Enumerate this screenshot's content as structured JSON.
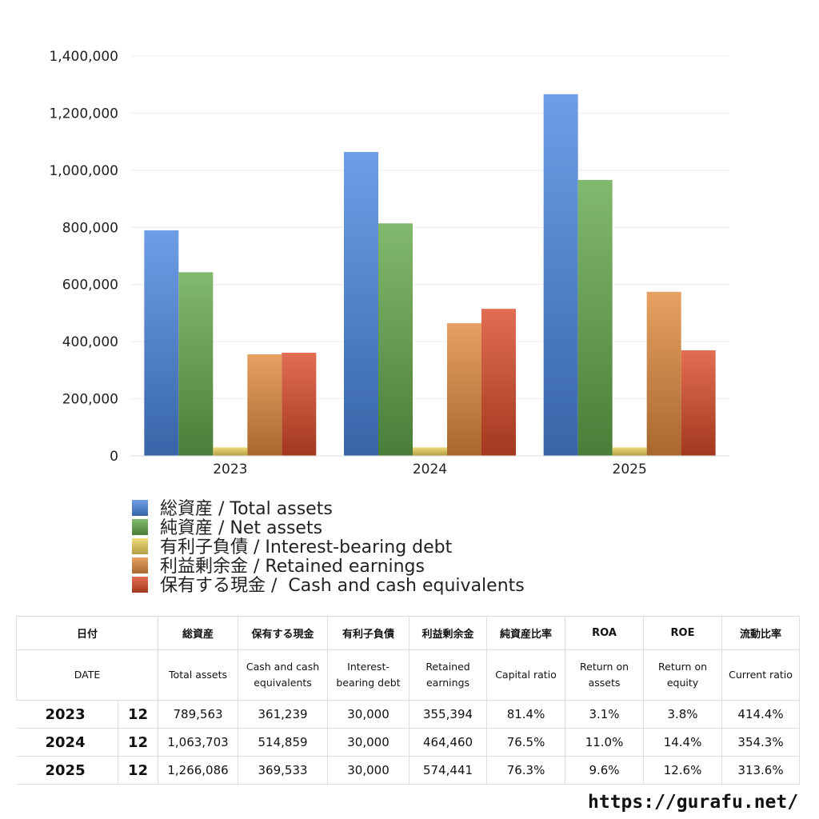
{
  "chart_data": {
    "type": "bar",
    "categories": [
      "2023",
      "2024",
      "2025"
    ],
    "series": [
      {
        "name": "総資産 / Total assets",
        "color": "#4a86e0",
        "values": [
          789563,
          1063703,
          1266086
        ]
      },
      {
        "name": "純資産 / Net assets",
        "color": "#62a84a",
        "values": [
          643000,
          814000,
          966000
        ]
      },
      {
        "name": "有利子負債 / Interest-bearing debt",
        "color": "#ecd25a",
        "values": [
          30000,
          30000,
          30000
        ]
      },
      {
        "name": "利益剰余金 / Retained earnings",
        "color": "#e08a3c",
        "values": [
          355394,
          464460,
          574441
        ]
      },
      {
        "name": "保有する現金 /  Cash and cash equivalents",
        "color": "#d94a28",
        "values": [
          361239,
          514859,
          369533
        ]
      }
    ],
    "ylim": [
      0,
      1400000
    ],
    "yticks": [
      0,
      {
        "value": 200000,
        "label": "200,000"
      },
      {
        "value": 400000,
        "label": "400,000"
      },
      {
        "value": 600000,
        "label": "600,000"
      },
      {
        "value": 800000,
        "label": "800,000"
      },
      {
        "value": 1000000,
        "label": "1,000,000"
      },
      {
        "value": 1200000,
        "label": "1,200,000"
      },
      {
        "value": 1400000,
        "label": "1,400,000"
      }
    ],
    "grid": true
  },
  "table": {
    "header_row1": [
      "日付",
      "総資産",
      "保有する現金",
      "有利子負債",
      "利益剰余金",
      "純資産比率",
      "ROA",
      "ROE",
      "流動比率"
    ],
    "header_row2": [
      "DATE",
      "Total assets",
      "Cash and cash equivalents",
      "Interest-bearing debt",
      "Retained earnings",
      "Capital ratio",
      "Return on assets",
      "Return on equity",
      "Current ratio"
    ],
    "rows": [
      [
        "2023",
        "12",
        "789,563",
        "361,239",
        "30,000",
        "355,394",
        "81.4%",
        "3.1%",
        "3.8%",
        "414.4%"
      ],
      [
        "2024",
        "12",
        "1,063,703",
        "514,859",
        "30,000",
        "464,460",
        "76.5%",
        "11.0%",
        "14.4%",
        "354.3%"
      ],
      [
        "2025",
        "12",
        "1,266,086",
        "369,533",
        "30,000",
        "574,441",
        "76.3%",
        "9.6%",
        "12.6%",
        "313.6%"
      ]
    ]
  },
  "footer": "https://gurafu.net/"
}
